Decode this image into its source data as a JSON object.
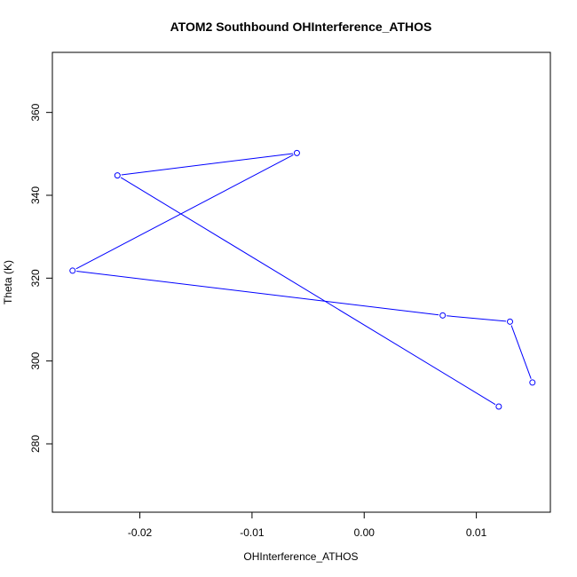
{
  "chart_data": {
    "type": "line",
    "title": "ATOM2 Southbound OHInterference_ATHOS",
    "xlabel": "OHInterference_ATHOS",
    "ylabel": "Theta (K)",
    "xlim": [
      -0.0278,
      0.0166
    ],
    "ylim": [
      263.5,
      374.5
    ],
    "xticks": [
      -0.02,
      -0.01,
      0.0,
      0.01
    ],
    "xtick_labels": [
      "-0.02",
      "-0.01",
      "0.00",
      "0.01"
    ],
    "yticks": [
      280,
      300,
      320,
      340,
      360
    ],
    "ytick_labels": [
      "280",
      "300",
      "320",
      "340",
      "360"
    ],
    "grid": false,
    "series": [
      {
        "color": "#0000ff",
        "marker": "open-circle",
        "x": [
          0.012,
          -0.022,
          -0.006,
          -0.026,
          0.007,
          0.013,
          0.015
        ],
        "y": [
          289.0,
          344.8,
          350.2,
          321.8,
          311.0,
          309.5,
          294.8
        ]
      }
    ]
  }
}
